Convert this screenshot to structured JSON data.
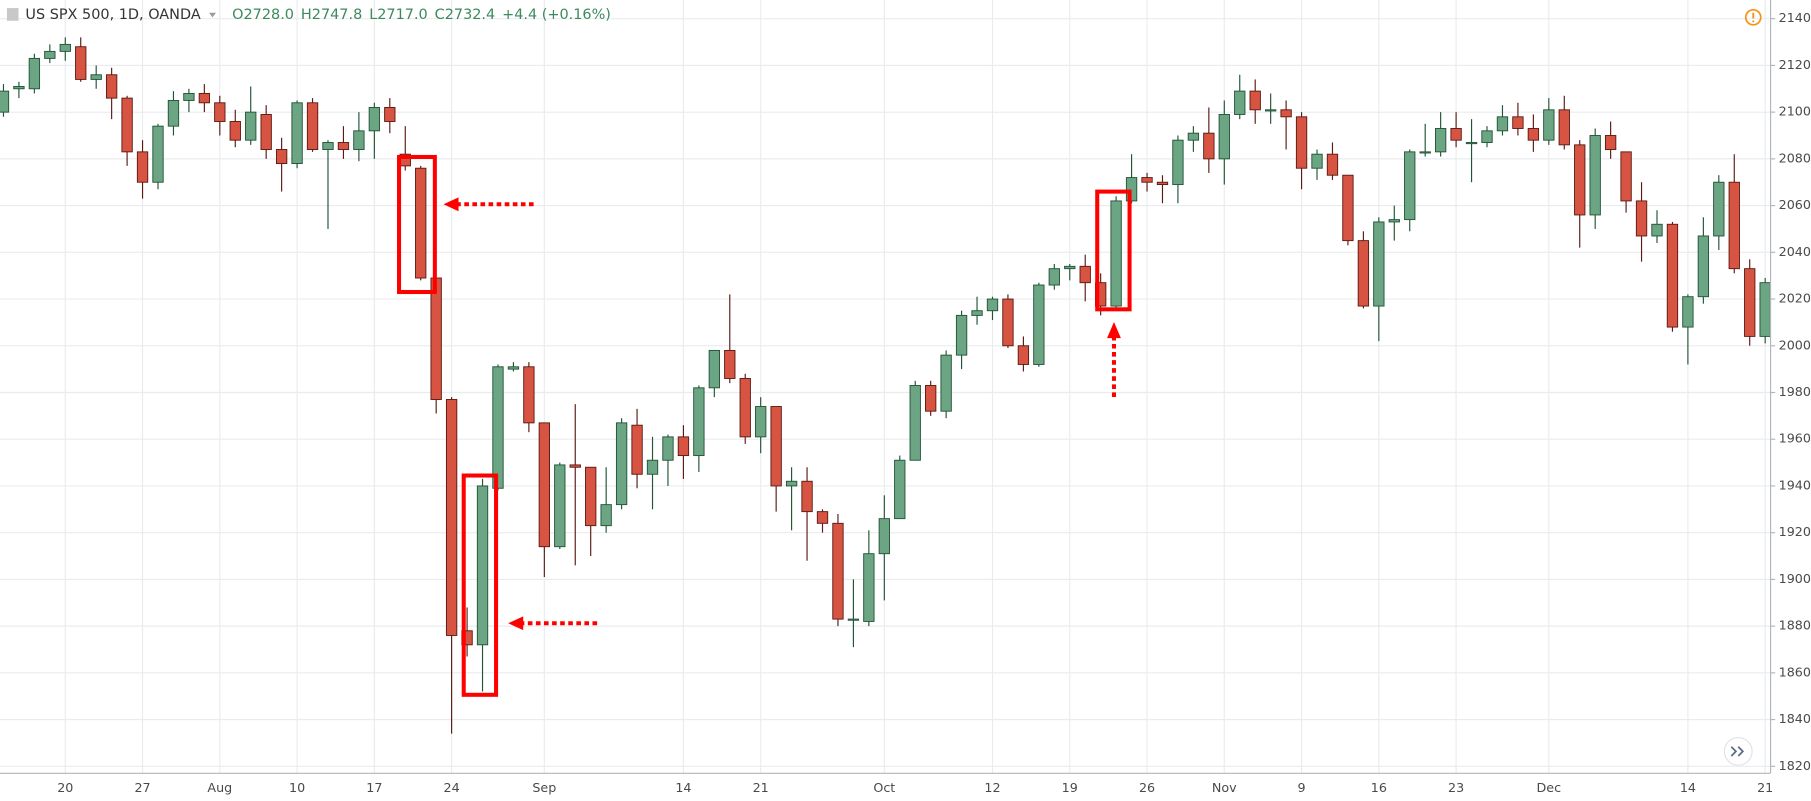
{
  "chart_data": {
    "type": "candlestick",
    "title": "US SPX 500, 1D, OANDA",
    "legend_items": [
      "O2728.0",
      "H2747.8",
      "L2717.0",
      "C2732.4",
      "+4.4 (+0.16%)"
    ],
    "categories": [
      null,
      null,
      null,
      null,
      "20",
      null,
      null,
      null,
      null,
      "27",
      null,
      null,
      null,
      null,
      "Aug",
      null,
      null,
      null,
      null,
      "10",
      null,
      null,
      null,
      null,
      "17",
      null,
      null,
      null,
      null,
      "24",
      null,
      null,
      null,
      null,
      null,
      "Sep",
      null,
      null,
      null,
      null,
      null,
      null,
      null,
      null,
      "14",
      null,
      null,
      null,
      null,
      "21",
      null,
      null,
      null,
      null,
      null,
      null,
      null,
      "Oct",
      null,
      null,
      null,
      null,
      null,
      null,
      "12",
      null,
      null,
      null,
      null,
      "19",
      null,
      null,
      null,
      null,
      "26",
      null,
      null,
      null,
      null,
      "Nov",
      null,
      null,
      null,
      null,
      "9",
      null,
      null,
      null,
      null,
      "16",
      null,
      null,
      null,
      null,
      "23",
      null,
      null,
      null,
      null,
      null,
      "Dec",
      null,
      null,
      null,
      null,
      null,
      null,
      null,
      null,
      "14",
      null,
      null,
      null,
      null,
      "21"
    ],
    "open": [
      2100,
      2110,
      2110,
      2123,
      2126,
      2128,
      2114,
      2116,
      2106,
      2083,
      2070,
      2094,
      2105,
      2108,
      2104,
      2096,
      2088,
      2099,
      2084,
      2078,
      2104,
      2084,
      2087,
      2084,
      2092,
      2102,
      2082,
      2076,
      2029,
      1977,
      1878,
      1872,
      1939,
      1990,
      1991,
      1967,
      1914,
      1949,
      1948,
      1923,
      1932,
      1966,
      1945,
      1951,
      1961,
      1953,
      1982,
      1998,
      1986,
      1961,
      1974,
      1940,
      1942,
      1929,
      1924,
      1883,
      1882,
      1911,
      1926,
      1951,
      1983,
      1972,
      1996,
      2013,
      2015,
      2020,
      2000,
      1992,
      2026,
      2033,
      2034,
      2027,
      2017,
      2062,
      2072,
      2070,
      2069,
      2088,
      2091,
      2080,
      2099,
      2109,
      2101,
      2101,
      2098,
      2076,
      2082,
      2073,
      2045,
      2017,
      2053,
      2054,
      2083,
      2083,
      2093,
      2087,
      2087,
      2092,
      2098,
      2093,
      2088,
      2101,
      2086,
      2056,
      2090,
      2083,
      2062,
      2047,
      2052,
      2008,
      2021,
      2047,
      2070,
      2033,
      2004
    ],
    "high": [
      2112,
      2113,
      2125,
      2129,
      2132,
      2132,
      2120,
      2119,
      2107,
      2088,
      2095,
      2109,
      2110,
      2112,
      2107,
      2101,
      2111,
      2103,
      2089,
      2105,
      2106,
      2088,
      2094,
      2100,
      2104,
      2106,
      2094,
      2077,
      2029,
      1978,
      1888,
      1943,
      1992,
      1993,
      1993,
      1967,
      1950,
      1975,
      1948,
      1948,
      1969,
      1973,
      1961,
      1962,
      1966,
      1983,
      1998,
      2022,
      1988,
      1978,
      1974,
      1948,
      1948,
      1930,
      1928,
      1900,
      1921,
      1936,
      1953,
      1985,
      1985,
      1998,
      2015,
      2021,
      2021,
      2022,
      2004,
      2027,
      2035,
      2035,
      2039,
      2031,
      2064,
      2082,
      2074,
      2073,
      2090,
      2094,
      2102,
      2105,
      2116,
      2114,
      2108,
      2105,
      2100,
      2084,
      2087,
      2073,
      2049,
      2055,
      2060,
      2084,
      2095,
      2100,
      2100,
      2097,
      2094,
      2103,
      2104,
      2099,
      2106,
      2107,
      2088,
      2093,
      2096,
      2083,
      2070,
      2058,
      2053,
      2022,
      2055,
      2073,
      2082,
      2037,
      2029
    ],
    "low": [
      2098,
      2106,
      2108,
      2121,
      2122,
      2113,
      2110,
      2097,
      2077,
      2063,
      2067,
      2090,
      2100,
      2100,
      2090,
      2085,
      2086,
      2080,
      2066,
      2076,
      2083,
      2050,
      2080,
      2079,
      2080,
      2091,
      2075,
      2028,
      1971,
      1834,
      1867,
      1852,
      1938,
      1989,
      1963,
      1901,
      1913,
      1906,
      1910,
      1920,
      1930,
      1939,
      1930,
      1940,
      1943,
      1946,
      1978,
      1984,
      1958,
      1954,
      1929,
      1921,
      1908,
      1920,
      1880,
      1871,
      1880,
      1891,
      1926,
      1951,
      1970,
      1969,
      1990,
      2009,
      2011,
      1999,
      1989,
      1991,
      2024,
      2028,
      2019,
      2013,
      2016,
      2061,
      2066,
      2061,
      2061,
      2083,
      2074,
      2069,
      2097,
      2095,
      2095,
      2084,
      2067,
      2071,
      2071,
      2043,
      2016,
      2002,
      2045,
      2049,
      2081,
      2081,
      2085,
      2070,
      2085,
      2090,
      2090,
      2083,
      2086,
      2084,
      2042,
      2050,
      2080,
      2057,
      2036,
      2044,
      2006,
      1992,
      2018,
      2041,
      2031,
      2000,
      2001
    ],
    "close": [
      2109,
      2111,
      2123,
      2126,
      2129,
      2114,
      2116,
      2106,
      2083,
      2070,
      2094,
      2105,
      2108,
      2104,
      2096,
      2088,
      2100,
      2084,
      2078,
      2104,
      2084,
      2087,
      2084,
      2092,
      2102,
      2096,
      2077,
      2029,
      1977,
      1876,
      1872,
      1940,
      1991,
      1991,
      1967,
      1914,
      1949,
      1948,
      1923,
      1932,
      1967,
      1945,
      1951,
      1961,
      1953,
      1982,
      1998,
      1986,
      1961,
      1974,
      1940,
      1942,
      1929,
      1924,
      1883,
      1883,
      1911,
      1926,
      1951,
      1983,
      1972,
      1996,
      2013,
      2015,
      2020,
      2000,
      1992,
      2026,
      2033,
      2034,
      2027,
      2017,
      2062,
      2072,
      2070,
      2069,
      2088,
      2091,
      2080,
      2099,
      2109,
      2101,
      2101,
      2098,
      2076,
      2082,
      2073,
      2045,
      2017,
      2053,
      2054,
      2083,
      2083,
      2093,
      2088,
      2087,
      2092,
      2098,
      2093,
      2088,
      2101,
      2086,
      2056,
      2090,
      2084,
      2062,
      2047,
      2052,
      2008,
      2021,
      2047,
      2070,
      2033,
      2004,
      2027
    ],
    "ylim": [
      1817,
      2148
    ],
    "yticks": [
      {
        "value": 1820,
        "label": "1820.0"
      },
      {
        "value": 1840,
        "label": "1840.0"
      },
      {
        "value": 1860,
        "label": "1860.0"
      },
      {
        "value": 1880,
        "label": "1880.0"
      },
      {
        "value": 1900,
        "label": "1900.0"
      },
      {
        "value": 1920,
        "label": "1920.0"
      },
      {
        "value": 1940,
        "label": "1940.0"
      },
      {
        "value": 1960,
        "label": "1960.0"
      },
      {
        "value": 1980,
        "label": "1980.0"
      },
      {
        "value": 2000,
        "label": "2000.0"
      },
      {
        "value": 2020,
        "label": "2020.0"
      },
      {
        "value": 2040,
        "label": "2040.0"
      },
      {
        "value": 2060,
        "label": "2060.0"
      },
      {
        "value": 2080,
        "label": "2080.0"
      },
      {
        "value": 2100,
        "label": "2100.0"
      },
      {
        "value": 2120,
        "label": "2120.0"
      },
      {
        "value": 2140,
        "label": "2140.0"
      }
    ],
    "grid": true,
    "colors": {
      "up": "#6ba583",
      "down": "#d75442",
      "up_border": "#225437",
      "down_border": "#5b1a13"
    }
  }
}
